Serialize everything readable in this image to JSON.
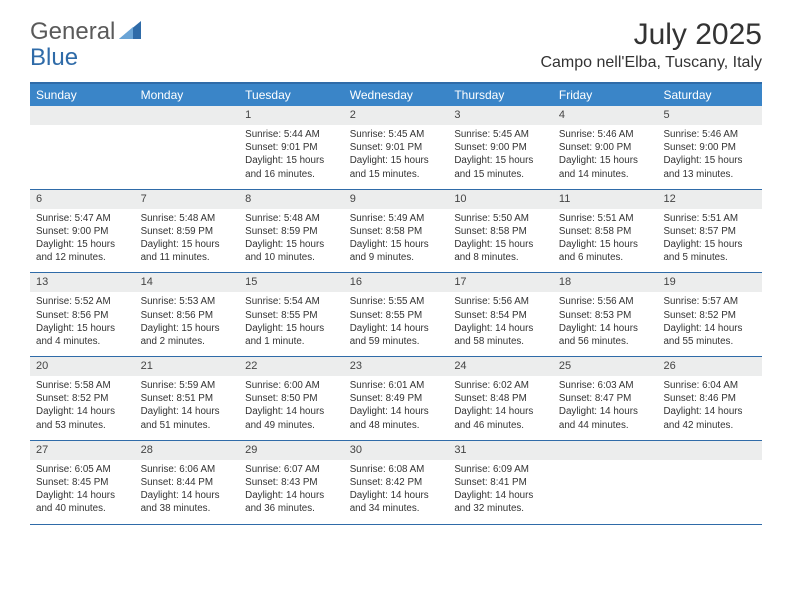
{
  "brand": {
    "part1": "General",
    "part2": "Blue"
  },
  "title": "July 2025",
  "location": "Campo nell'Elba, Tuscany, Italy",
  "colors": {
    "header_bg": "#3a85c8",
    "border": "#2f6ba8",
    "daynum_bg": "#eceded",
    "text": "#333333",
    "dow_text": "#ffffff"
  },
  "dow": [
    "Sunday",
    "Monday",
    "Tuesday",
    "Wednesday",
    "Thursday",
    "Friday",
    "Saturday"
  ],
  "weeks": [
    [
      {
        "empty": true
      },
      {
        "empty": true
      },
      {
        "num": "1",
        "sunrise": "Sunrise: 5:44 AM",
        "sunset": "Sunset: 9:01 PM",
        "dl1": "Daylight: 15 hours",
        "dl2": "and 16 minutes."
      },
      {
        "num": "2",
        "sunrise": "Sunrise: 5:45 AM",
        "sunset": "Sunset: 9:01 PM",
        "dl1": "Daylight: 15 hours",
        "dl2": "and 15 minutes."
      },
      {
        "num": "3",
        "sunrise": "Sunrise: 5:45 AM",
        "sunset": "Sunset: 9:00 PM",
        "dl1": "Daylight: 15 hours",
        "dl2": "and 15 minutes."
      },
      {
        "num": "4",
        "sunrise": "Sunrise: 5:46 AM",
        "sunset": "Sunset: 9:00 PM",
        "dl1": "Daylight: 15 hours",
        "dl2": "and 14 minutes."
      },
      {
        "num": "5",
        "sunrise": "Sunrise: 5:46 AM",
        "sunset": "Sunset: 9:00 PM",
        "dl1": "Daylight: 15 hours",
        "dl2": "and 13 minutes."
      }
    ],
    [
      {
        "num": "6",
        "sunrise": "Sunrise: 5:47 AM",
        "sunset": "Sunset: 9:00 PM",
        "dl1": "Daylight: 15 hours",
        "dl2": "and 12 minutes."
      },
      {
        "num": "7",
        "sunrise": "Sunrise: 5:48 AM",
        "sunset": "Sunset: 8:59 PM",
        "dl1": "Daylight: 15 hours",
        "dl2": "and 11 minutes."
      },
      {
        "num": "8",
        "sunrise": "Sunrise: 5:48 AM",
        "sunset": "Sunset: 8:59 PM",
        "dl1": "Daylight: 15 hours",
        "dl2": "and 10 minutes."
      },
      {
        "num": "9",
        "sunrise": "Sunrise: 5:49 AM",
        "sunset": "Sunset: 8:58 PM",
        "dl1": "Daylight: 15 hours",
        "dl2": "and 9 minutes."
      },
      {
        "num": "10",
        "sunrise": "Sunrise: 5:50 AM",
        "sunset": "Sunset: 8:58 PM",
        "dl1": "Daylight: 15 hours",
        "dl2": "and 8 minutes."
      },
      {
        "num": "11",
        "sunrise": "Sunrise: 5:51 AM",
        "sunset": "Sunset: 8:58 PM",
        "dl1": "Daylight: 15 hours",
        "dl2": "and 6 minutes."
      },
      {
        "num": "12",
        "sunrise": "Sunrise: 5:51 AM",
        "sunset": "Sunset: 8:57 PM",
        "dl1": "Daylight: 15 hours",
        "dl2": "and 5 minutes."
      }
    ],
    [
      {
        "num": "13",
        "sunrise": "Sunrise: 5:52 AM",
        "sunset": "Sunset: 8:56 PM",
        "dl1": "Daylight: 15 hours",
        "dl2": "and 4 minutes."
      },
      {
        "num": "14",
        "sunrise": "Sunrise: 5:53 AM",
        "sunset": "Sunset: 8:56 PM",
        "dl1": "Daylight: 15 hours",
        "dl2": "and 2 minutes."
      },
      {
        "num": "15",
        "sunrise": "Sunrise: 5:54 AM",
        "sunset": "Sunset: 8:55 PM",
        "dl1": "Daylight: 15 hours",
        "dl2": "and 1 minute."
      },
      {
        "num": "16",
        "sunrise": "Sunrise: 5:55 AM",
        "sunset": "Sunset: 8:55 PM",
        "dl1": "Daylight: 14 hours",
        "dl2": "and 59 minutes."
      },
      {
        "num": "17",
        "sunrise": "Sunrise: 5:56 AM",
        "sunset": "Sunset: 8:54 PM",
        "dl1": "Daylight: 14 hours",
        "dl2": "and 58 minutes."
      },
      {
        "num": "18",
        "sunrise": "Sunrise: 5:56 AM",
        "sunset": "Sunset: 8:53 PM",
        "dl1": "Daylight: 14 hours",
        "dl2": "and 56 minutes."
      },
      {
        "num": "19",
        "sunrise": "Sunrise: 5:57 AM",
        "sunset": "Sunset: 8:52 PM",
        "dl1": "Daylight: 14 hours",
        "dl2": "and 55 minutes."
      }
    ],
    [
      {
        "num": "20",
        "sunrise": "Sunrise: 5:58 AM",
        "sunset": "Sunset: 8:52 PM",
        "dl1": "Daylight: 14 hours",
        "dl2": "and 53 minutes."
      },
      {
        "num": "21",
        "sunrise": "Sunrise: 5:59 AM",
        "sunset": "Sunset: 8:51 PM",
        "dl1": "Daylight: 14 hours",
        "dl2": "and 51 minutes."
      },
      {
        "num": "22",
        "sunrise": "Sunrise: 6:00 AM",
        "sunset": "Sunset: 8:50 PM",
        "dl1": "Daylight: 14 hours",
        "dl2": "and 49 minutes."
      },
      {
        "num": "23",
        "sunrise": "Sunrise: 6:01 AM",
        "sunset": "Sunset: 8:49 PM",
        "dl1": "Daylight: 14 hours",
        "dl2": "and 48 minutes."
      },
      {
        "num": "24",
        "sunrise": "Sunrise: 6:02 AM",
        "sunset": "Sunset: 8:48 PM",
        "dl1": "Daylight: 14 hours",
        "dl2": "and 46 minutes."
      },
      {
        "num": "25",
        "sunrise": "Sunrise: 6:03 AM",
        "sunset": "Sunset: 8:47 PM",
        "dl1": "Daylight: 14 hours",
        "dl2": "and 44 minutes."
      },
      {
        "num": "26",
        "sunrise": "Sunrise: 6:04 AM",
        "sunset": "Sunset: 8:46 PM",
        "dl1": "Daylight: 14 hours",
        "dl2": "and 42 minutes."
      }
    ],
    [
      {
        "num": "27",
        "sunrise": "Sunrise: 6:05 AM",
        "sunset": "Sunset: 8:45 PM",
        "dl1": "Daylight: 14 hours",
        "dl2": "and 40 minutes."
      },
      {
        "num": "28",
        "sunrise": "Sunrise: 6:06 AM",
        "sunset": "Sunset: 8:44 PM",
        "dl1": "Daylight: 14 hours",
        "dl2": "and 38 minutes."
      },
      {
        "num": "29",
        "sunrise": "Sunrise: 6:07 AM",
        "sunset": "Sunset: 8:43 PM",
        "dl1": "Daylight: 14 hours",
        "dl2": "and 36 minutes."
      },
      {
        "num": "30",
        "sunrise": "Sunrise: 6:08 AM",
        "sunset": "Sunset: 8:42 PM",
        "dl1": "Daylight: 14 hours",
        "dl2": "and 34 minutes."
      },
      {
        "num": "31",
        "sunrise": "Sunrise: 6:09 AM",
        "sunset": "Sunset: 8:41 PM",
        "dl1": "Daylight: 14 hours",
        "dl2": "and 32 minutes."
      },
      {
        "empty": true
      },
      {
        "empty": true
      }
    ]
  ]
}
